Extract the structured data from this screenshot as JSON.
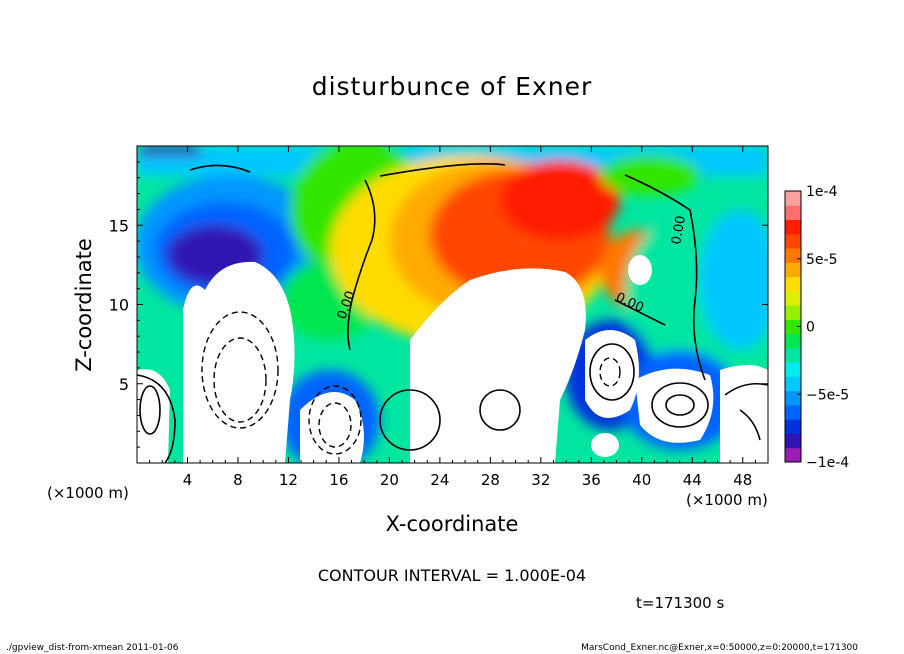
{
  "chart_data": {
    "type": "heatmap",
    "title": "disturbunce of Exner",
    "xlabel": "X-coordinate",
    "ylabel": "Z-coordinate",
    "x_unit": "(×1000 m)",
    "xlim": [
      0,
      50
    ],
    "ylim": [
      0,
      20
    ],
    "x_ticks": [
      4,
      8,
      12,
      16,
      20,
      24,
      28,
      32,
      36,
      40,
      44,
      48
    ],
    "y_ticks": [
      5,
      10,
      15
    ],
    "contour_label": "0.00",
    "colorbar": {
      "min": -0.0001,
      "max": 0.0001,
      "tick_labels": [
        "1e-4",
        "5e-5",
        "0",
        "−5e-5",
        "−1e-4"
      ],
      "tick_values": [
        0.0001,
        5e-05,
        0,
        -5e-05,
        -0.0001
      ],
      "colors": [
        "#9c1cb6",
        "#3214b4",
        "#0032dc",
        "#0064ff",
        "#0096ff",
        "#00c8ff",
        "#00ebeb",
        "#00e6a0",
        "#00e650",
        "#32e600",
        "#96f000",
        "#dcf000",
        "#ffdc00",
        "#ffaa00",
        "#ff7800",
        "#ff4600",
        "#ff1e00",
        "#ff6e6e",
        "#ffa0a0"
      ]
    },
    "contour_interval": "CONTOUR INTERVAL = 1.000E-04",
    "time": "t=171300 s"
  },
  "footer": {
    "left": "./gpview_dist-from-xmean  2011-01-06",
    "right": "MarsCond_Exner.nc@Exner,x=0:50000,z=0:20000,t=171300"
  }
}
